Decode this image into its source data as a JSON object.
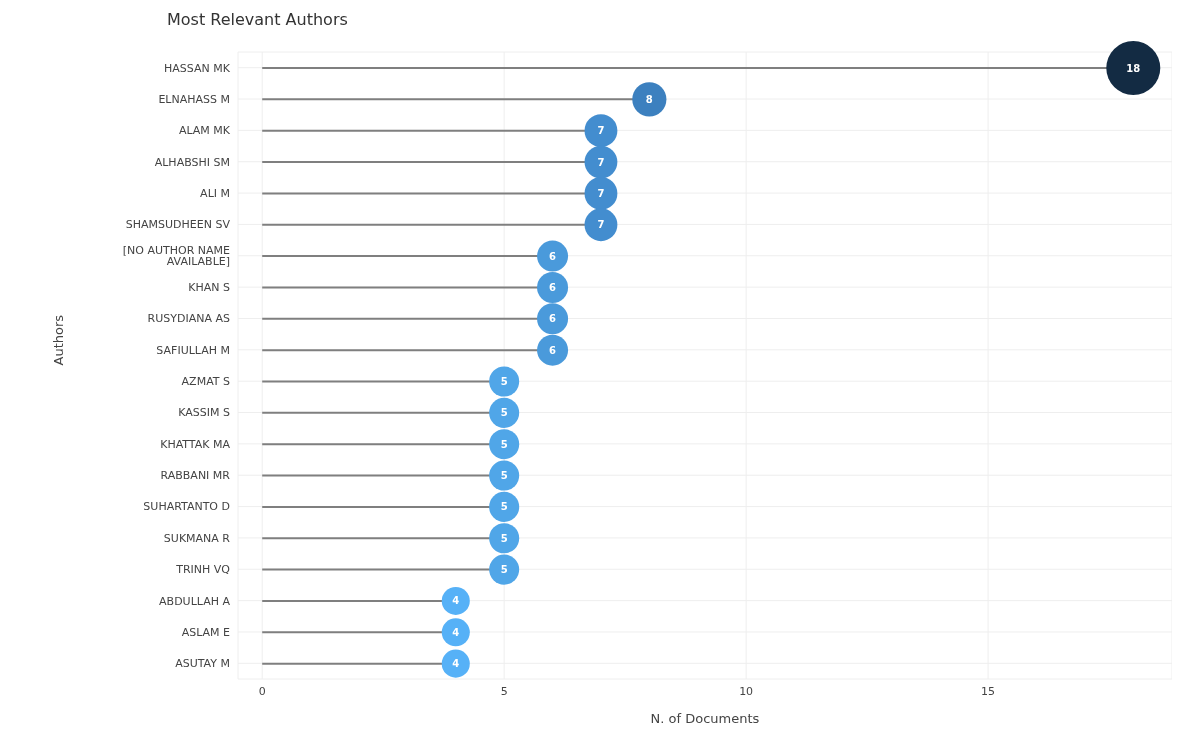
{
  "chart_data": {
    "type": "lollipop",
    "orientation": "horizontal",
    "title": "Most Relevant Authors",
    "xlabel": "N. of Documents",
    "ylabel": "Authors",
    "categories": [
      "HASSAN MK",
      "ELNAHASS M",
      "ALAM MK",
      "ALHABSHI SM",
      "ALI M",
      "SHAMSUDHEEN SV",
      "[NO AUTHOR NAME AVAILABLE]",
      "KHAN S",
      "RUSYDIANA AS",
      "SAFIULLAH M",
      "AZMAT S",
      "KASSIM S",
      "KHATTAK MA",
      "RABBANI MR",
      "SUHARTANTO D",
      "SUKMANA R",
      "TRINH VQ",
      "ABDULLAH A",
      "ASLAM E",
      "ASUTAY M"
    ],
    "values": [
      18,
      8,
      7,
      7,
      7,
      7,
      6,
      6,
      6,
      6,
      5,
      5,
      5,
      5,
      5,
      5,
      5,
      4,
      4,
      4
    ],
    "colors": [
      "#132b43",
      "#3c80bf",
      "#438dcf",
      "#438dcf",
      "#438dcf",
      "#438dcf",
      "#4a9adb",
      "#4a9adb",
      "#4a9adb",
      "#4a9adb",
      "#50a6e8",
      "#50a6e8",
      "#50a6e8",
      "#50a6e8",
      "#50a6e8",
      "#50a6e8",
      "#50a6e8",
      "#56b1f7",
      "#56b1f7",
      "#56b1f7"
    ],
    "sizes": [
      1,
      0.4,
      0.37,
      0.37,
      0.37,
      0.37,
      0.33,
      0.33,
      0.33,
      0.33,
      0.31,
      0.31,
      0.31,
      0.31,
      0.31,
      0.31,
      0.31,
      0.27,
      0.27,
      0.27
    ],
    "xlim": [
      -0.5,
      18.8
    ],
    "xticks": [
      0,
      5,
      10,
      15
    ],
    "grid": true,
    "data_labels": true
  }
}
